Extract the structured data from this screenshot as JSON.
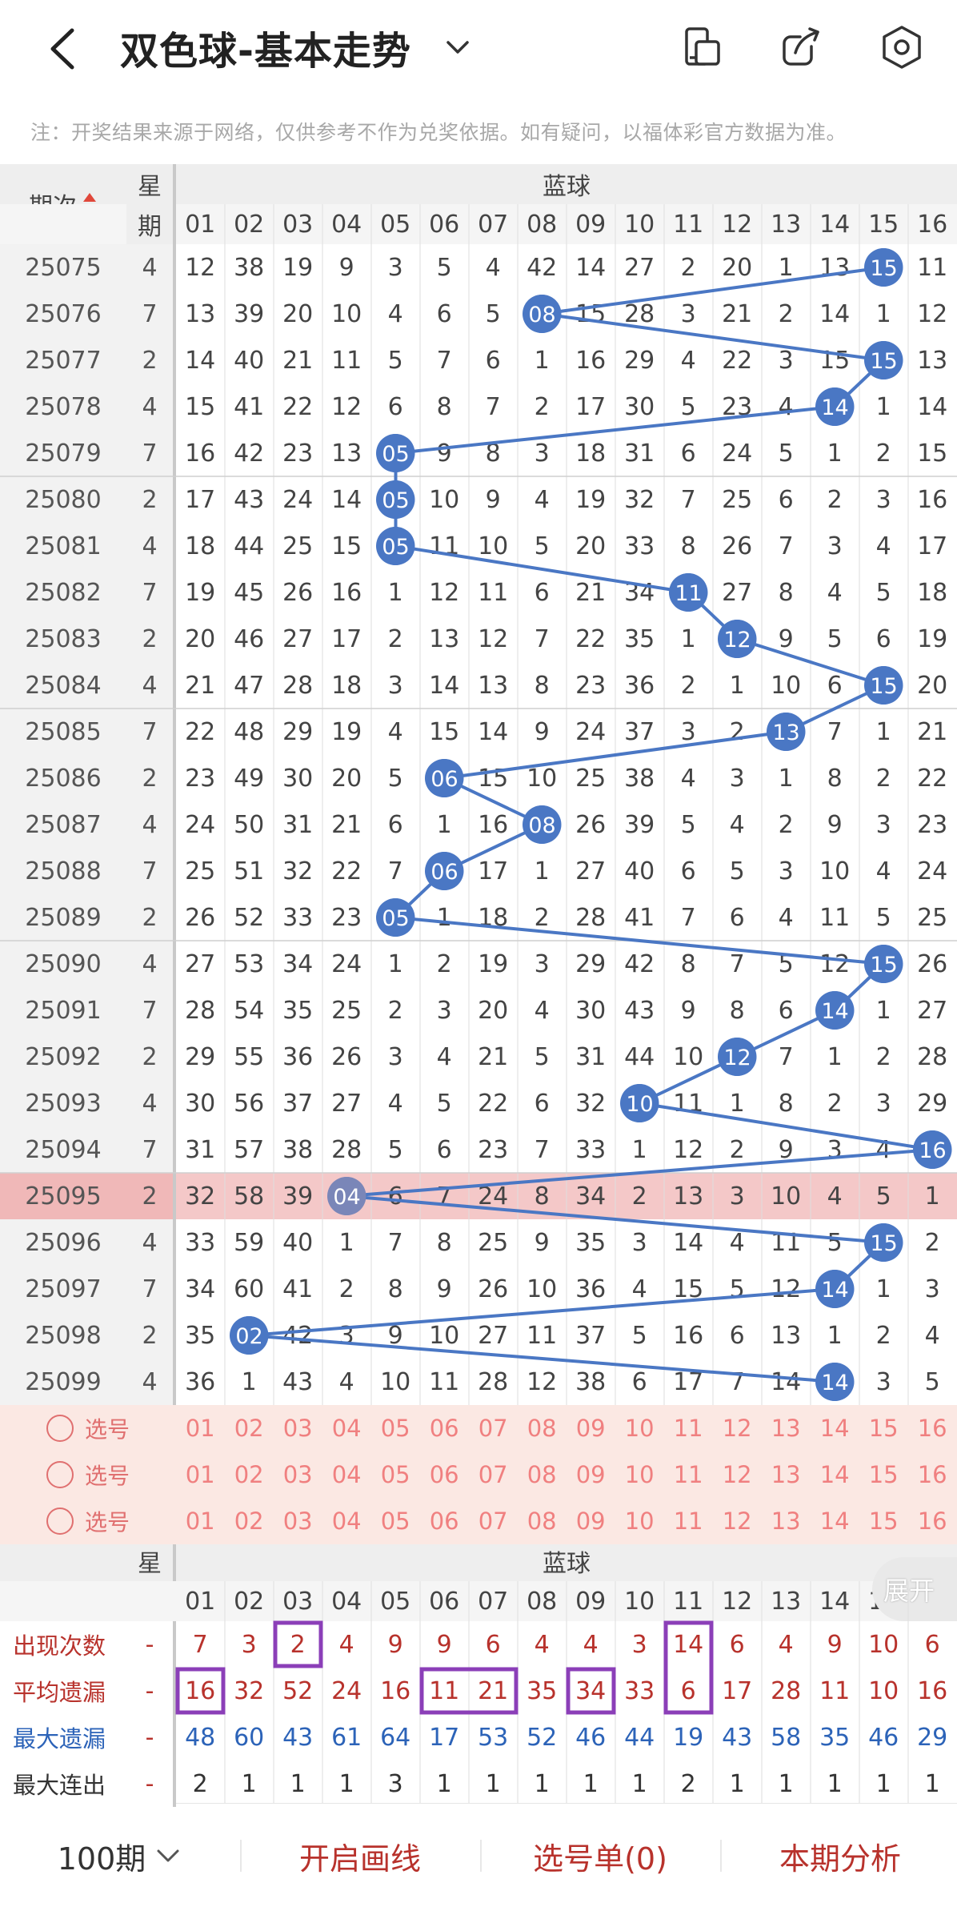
{
  "header": {
    "title": "双色球-基本走势"
  },
  "notice": "注：开奖结果来源于网络，仅供参考不作为兑奖依据。如有疑问，以福体彩官方数据为准。",
  "table": {
    "col_period": "期次",
    "col_week_top": "星",
    "col_week_bottom": "期",
    "section": "蓝球",
    "numbers": [
      "01",
      "02",
      "03",
      "04",
      "05",
      "06",
      "07",
      "08",
      "09",
      "10",
      "11",
      "12",
      "13",
      "14",
      "15",
      "16"
    ],
    "rows": [
      {
        "period": "25075",
        "week": "4",
        "vals": [
          "12",
          "38",
          "19",
          "9",
          "3",
          "5",
          "4",
          "42",
          "14",
          "27",
          "2",
          "20",
          "1",
          "13",
          "15",
          "11"
        ],
        "hit": 15
      },
      {
        "period": "25076",
        "week": "7",
        "vals": [
          "13",
          "39",
          "20",
          "10",
          "4",
          "6",
          "5",
          "08",
          "15",
          "28",
          "3",
          "21",
          "2",
          "14",
          "1",
          "12"
        ],
        "hit": 8
      },
      {
        "period": "25077",
        "week": "2",
        "vals": [
          "14",
          "40",
          "21",
          "11",
          "5",
          "7",
          "6",
          "1",
          "16",
          "29",
          "4",
          "22",
          "3",
          "15",
          "15",
          "13"
        ],
        "hit": 15
      },
      {
        "period": "25078",
        "week": "4",
        "vals": [
          "15",
          "41",
          "22",
          "12",
          "6",
          "8",
          "7",
          "2",
          "17",
          "30",
          "5",
          "23",
          "4",
          "14",
          "1",
          "14"
        ],
        "hit": 14
      },
      {
        "period": "25079",
        "week": "7",
        "vals": [
          "16",
          "42",
          "23",
          "13",
          "05",
          "9",
          "8",
          "3",
          "18",
          "31",
          "6",
          "24",
          "5",
          "1",
          "2",
          "15"
        ],
        "hit": 5
      },
      {
        "period": "25080",
        "week": "2",
        "vals": [
          "17",
          "43",
          "24",
          "14",
          "05",
          "10",
          "9",
          "4",
          "19",
          "32",
          "7",
          "25",
          "6",
          "2",
          "3",
          "16"
        ],
        "hit": 5
      },
      {
        "period": "25081",
        "week": "4",
        "vals": [
          "18",
          "44",
          "25",
          "15",
          "05",
          "11",
          "10",
          "5",
          "20",
          "33",
          "8",
          "26",
          "7",
          "3",
          "4",
          "17"
        ],
        "hit": 5
      },
      {
        "period": "25082",
        "week": "7",
        "vals": [
          "19",
          "45",
          "26",
          "16",
          "1",
          "12",
          "11",
          "6",
          "21",
          "34",
          "11",
          "27",
          "8",
          "4",
          "5",
          "18"
        ],
        "hit": 11
      },
      {
        "period": "25083",
        "week": "2",
        "vals": [
          "20",
          "46",
          "27",
          "17",
          "2",
          "13",
          "12",
          "7",
          "22",
          "35",
          "1",
          "12",
          "9",
          "5",
          "6",
          "19"
        ],
        "hit": 12
      },
      {
        "period": "25084",
        "week": "4",
        "vals": [
          "21",
          "47",
          "28",
          "18",
          "3",
          "14",
          "13",
          "8",
          "23",
          "36",
          "2",
          "1",
          "10",
          "6",
          "15",
          "20"
        ],
        "hit": 15
      },
      {
        "period": "25085",
        "week": "7",
        "vals": [
          "22",
          "48",
          "29",
          "19",
          "4",
          "15",
          "14",
          "9",
          "24",
          "37",
          "3",
          "2",
          "13",
          "7",
          "1",
          "21"
        ],
        "hit": 13
      },
      {
        "period": "25086",
        "week": "2",
        "vals": [
          "23",
          "49",
          "30",
          "20",
          "5",
          "06",
          "15",
          "10",
          "25",
          "38",
          "4",
          "3",
          "1",
          "8",
          "2",
          "22"
        ],
        "hit": 6
      },
      {
        "period": "25087",
        "week": "4",
        "vals": [
          "24",
          "50",
          "31",
          "21",
          "6",
          "1",
          "16",
          "08",
          "26",
          "39",
          "5",
          "4",
          "2",
          "9",
          "3",
          "23"
        ],
        "hit": 8
      },
      {
        "period": "25088",
        "week": "7",
        "vals": [
          "25",
          "51",
          "32",
          "22",
          "7",
          "06",
          "17",
          "1",
          "27",
          "40",
          "6",
          "5",
          "3",
          "10",
          "4",
          "24"
        ],
        "hit": 6
      },
      {
        "period": "25089",
        "week": "2",
        "vals": [
          "26",
          "52",
          "33",
          "23",
          "05",
          "1",
          "18",
          "2",
          "28",
          "41",
          "7",
          "6",
          "4",
          "11",
          "5",
          "25"
        ],
        "hit": 5
      },
      {
        "period": "25090",
        "week": "4",
        "vals": [
          "27",
          "53",
          "34",
          "24",
          "1",
          "2",
          "19",
          "3",
          "29",
          "42",
          "8",
          "7",
          "5",
          "12",
          "15",
          "26"
        ],
        "hit": 15
      },
      {
        "period": "25091",
        "week": "7",
        "vals": [
          "28",
          "54",
          "35",
          "25",
          "2",
          "3",
          "20",
          "4",
          "30",
          "43",
          "9",
          "8",
          "6",
          "14",
          "1",
          "27"
        ],
        "hit": 14
      },
      {
        "period": "25092",
        "week": "2",
        "vals": [
          "29",
          "55",
          "36",
          "26",
          "3",
          "4",
          "21",
          "5",
          "31",
          "44",
          "10",
          "12",
          "7",
          "1",
          "2",
          "28"
        ],
        "hit": 12
      },
      {
        "period": "25093",
        "week": "4",
        "vals": [
          "30",
          "56",
          "37",
          "27",
          "4",
          "5",
          "22",
          "6",
          "32",
          "10",
          "11",
          "1",
          "8",
          "2",
          "3",
          "29"
        ],
        "hit": 10
      },
      {
        "period": "25094",
        "week": "7",
        "vals": [
          "31",
          "57",
          "38",
          "28",
          "5",
          "6",
          "23",
          "7",
          "33",
          "1",
          "12",
          "2",
          "9",
          "3",
          "4",
          "16"
        ],
        "hit": 16
      },
      {
        "period": "25095",
        "week": "2",
        "vals": [
          "32",
          "58",
          "39",
          "04",
          "6",
          "7",
          "24",
          "8",
          "34",
          "2",
          "13",
          "3",
          "10",
          "4",
          "5",
          "1"
        ],
        "hit": 4
      },
      {
        "period": "25096",
        "week": "4",
        "vals": [
          "33",
          "59",
          "40",
          "1",
          "7",
          "8",
          "25",
          "9",
          "35",
          "3",
          "14",
          "4",
          "11",
          "5",
          "15",
          "2"
        ],
        "hit": 15
      },
      {
        "period": "25097",
        "week": "7",
        "vals": [
          "34",
          "60",
          "41",
          "2",
          "8",
          "9",
          "26",
          "10",
          "36",
          "4",
          "15",
          "5",
          "12",
          "14",
          "1",
          "3"
        ],
        "hit": 14
      },
      {
        "period": "25098",
        "week": "2",
        "vals": [
          "35",
          "02",
          "42",
          "3",
          "9",
          "10",
          "27",
          "11",
          "37",
          "5",
          "16",
          "6",
          "13",
          "1",
          "2",
          "4"
        ],
        "hit": 2
      },
      {
        "period": "25099",
        "week": "4",
        "vals": [
          "36",
          "1",
          "43",
          "4",
          "10",
          "11",
          "28",
          "12",
          "38",
          "6",
          "17",
          "7",
          "14",
          "14",
          "3",
          "5"
        ],
        "hit": 14
      }
    ],
    "select_rows": [
      {
        "label": "选号"
      },
      {
        "label": "选号"
      },
      {
        "label": "选号"
      }
    ],
    "stats_header_left": "-",
    "expand_label": "展开",
    "stats": [
      {
        "label": "出现次数",
        "dash": "-",
        "vals": [
          "7",
          "3",
          "2",
          "4",
          "9",
          "9",
          "6",
          "4",
          "4",
          "3",
          "14",
          "6",
          "4",
          "9",
          "10",
          "6"
        ],
        "color": "red"
      },
      {
        "label": "平均遗漏",
        "dash": "-",
        "vals": [
          "16",
          "32",
          "52",
          "24",
          "16",
          "11",
          "21",
          "35",
          "34",
          "33",
          "6",
          "17",
          "28",
          "11",
          "10",
          "16"
        ],
        "color": "red"
      },
      {
        "label": "最大遗漏",
        "dash": "-",
        "vals": [
          "48",
          "60",
          "43",
          "61",
          "64",
          "17",
          "53",
          "52",
          "46",
          "44",
          "19",
          "43",
          "58",
          "35",
          "46",
          "29"
        ],
        "color": "blue"
      },
      {
        "label": "最大连出",
        "dash": "-",
        "vals": [
          "2",
          "1",
          "1",
          "1",
          "3",
          "1",
          "1",
          "1",
          "1",
          "1",
          "2",
          "1",
          "1",
          "1",
          "1",
          "1"
        ],
        "color": "dark"
      }
    ]
  },
  "bottom": {
    "periods": "100期",
    "draw": "开启画线",
    "cart": "选号单(0)",
    "analysis": "本期分析"
  },
  "colors": {
    "ball": "#4a77c4",
    "line": "#4a77c4",
    "accent": "#e0473a",
    "highlight_row": "#f4c8c8"
  }
}
